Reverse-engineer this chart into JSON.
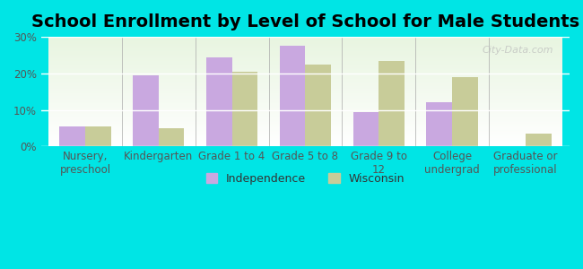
{
  "title": "School Enrollment by Level of School for Male Students",
  "categories": [
    "Nursery,\npreschool",
    "Kindergarten",
    "Grade 1 to 4",
    "Grade 5 to 8",
    "Grade 9 to\n12",
    "College\nundergrad",
    "Graduate or\nprofessional"
  ],
  "independence_values": [
    5.5,
    19.5,
    24.5,
    27.5,
    9.5,
    12.0,
    0.0
  ],
  "wisconsin_values": [
    5.5,
    5.0,
    20.5,
    22.5,
    23.5,
    19.0,
    3.5
  ],
  "independence_color": "#c9a8e0",
  "wisconsin_color": "#c8cc99",
  "background_color": "#00e5e5",
  "plot_bg_color_top": "#f0fff0",
  "plot_bg_color_bottom": "#ffffff",
  "ylim": [
    0,
    30
  ],
  "yticks": [
    0,
    10,
    20,
    30
  ],
  "ytick_labels": [
    "0%",
    "10%",
    "20%",
    "30%"
  ],
  "bar_width": 0.35,
  "legend_labels": [
    "Independence",
    "Wisconsin"
  ],
  "watermark": "City-Data.com",
  "title_fontsize": 14,
  "tick_fontsize": 8.5,
  "legend_fontsize": 9
}
